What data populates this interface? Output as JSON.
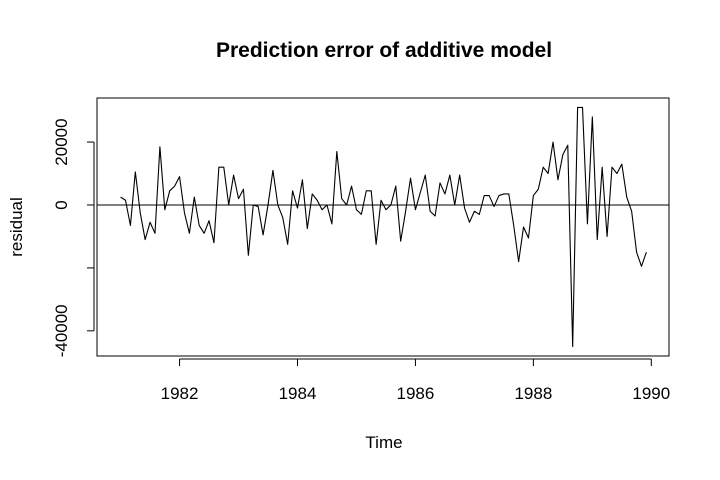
{
  "chart_data": {
    "type": "line",
    "title": "Prediction error of additive model",
    "xlabel": "Time",
    "ylabel": "residual",
    "xlim": [
      1980.6,
      1990.3
    ],
    "ylim": [
      -48000,
      34000
    ],
    "x_ticks": [
      1982,
      1984,
      1986,
      1988,
      1990
    ],
    "x_tick_labels": [
      "1982",
      "1984",
      "1986",
      "1988",
      "1990"
    ],
    "y_ticks": [
      -40000,
      0,
      20000
    ],
    "y_tick_labels": [
      "-40000",
      "0",
      "20000"
    ],
    "y_minor_ticks": [
      -20000
    ],
    "grid": false,
    "reference_line": 0,
    "x_start": 1981.0,
    "x_step": 0.0833333,
    "series": [
      {
        "values": [
          2500,
          1500,
          -6500,
          10500,
          -2500,
          -11000,
          -5500,
          -9000,
          18500,
          -1500,
          4500,
          6000,
          9000,
          -2500,
          -9000,
          2500,
          -6500,
          -9000,
          -5000,
          -12000,
          12000,
          12000,
          0,
          9500,
          2000,
          5000,
          -16000,
          0,
          -500,
          -9500,
          0,
          11000,
          0,
          -4000,
          -12500,
          4500,
          -1000,
          8000,
          -7500,
          3500,
          1500,
          -1500,
          0,
          -6000,
          17000,
          2000,
          0,
          6000,
          -1500,
          -3000,
          4500,
          4500,
          -12500,
          1500,
          -1500,
          0,
          6000,
          -11500,
          -2000,
          8500,
          -1500,
          4000,
          9500,
          -2000,
          -3500,
          7000,
          3500,
          9500,
          0,
          9500,
          -1000,
          -5500,
          -2000,
          -3000,
          3000,
          3000,
          -500,
          3000,
          3500,
          3500,
          -6500,
          -18000,
          -7000,
          -10500,
          3000,
          5000,
          12000,
          10000,
          20000,
          8000,
          16000,
          19000,
          -45000,
          31000,
          31000,
          -6000,
          28000,
          -11000,
          12000,
          -10000,
          12000,
          10000,
          13000,
          2500,
          -2000,
          -15000,
          -19500,
          -15000
        ]
      }
    ]
  }
}
